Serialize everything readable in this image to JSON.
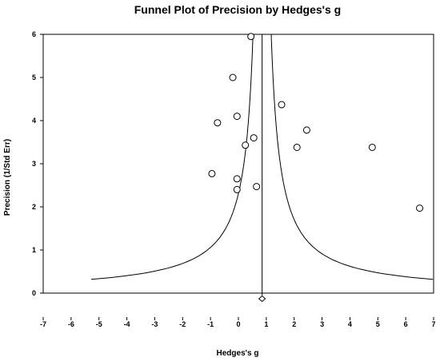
{
  "chart_data": {
    "type": "scatter",
    "title": "Funnel Plot of Precision by Hedges's g",
    "xlabel": "Hedges's g",
    "ylabel": "Precision (1/Std Err)",
    "xlim": [
      -7,
      7
    ],
    "ylim": [
      0,
      6
    ],
    "xticks": [
      -7,
      -6,
      -5,
      -4,
      -3,
      -2,
      -1,
      0,
      1,
      2,
      3,
      4,
      5,
      6,
      7
    ],
    "yticks": [
      0,
      1,
      2,
      3,
      4,
      5,
      6
    ],
    "grid": false,
    "studies": [
      {
        "x": 0.45,
        "y": 5.95
      },
      {
        "x": -0.2,
        "y": 5.0
      },
      {
        "x": 1.55,
        "y": 4.37
      },
      {
        "x": -0.05,
        "y": 4.1
      },
      {
        "x": -0.75,
        "y": 3.95
      },
      {
        "x": 2.45,
        "y": 3.78
      },
      {
        "x": 0.55,
        "y": 3.6
      },
      {
        "x": 0.25,
        "y": 3.43
      },
      {
        "x": 2.1,
        "y": 3.38
      },
      {
        "x": 4.8,
        "y": 3.38
      },
      {
        "x": -0.95,
        "y": 2.77
      },
      {
        "x": -0.05,
        "y": 2.65
      },
      {
        "x": 0.65,
        "y": 2.47
      },
      {
        "x": -0.05,
        "y": 2.4
      },
      {
        "x": 6.5,
        "y": 1.97
      }
    ],
    "combined_effect": {
      "x": 0.85,
      "y": -0.13
    },
    "funnel_center": 0.85,
    "funnel_y_max": 6.0
  }
}
